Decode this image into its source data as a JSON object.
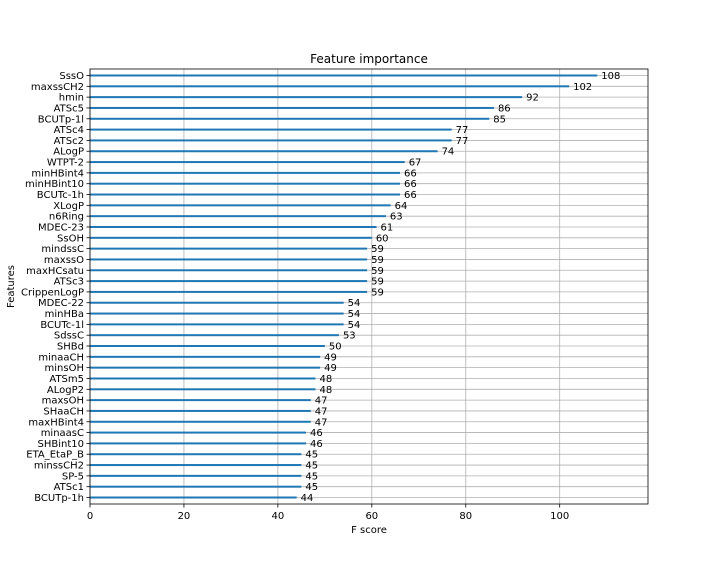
{
  "chart_data": {
    "type": "bar",
    "orientation": "horizontal",
    "title": "Feature importance",
    "xlabel": "F score",
    "ylabel": "Features",
    "xlim": [
      0,
      118.8
    ],
    "xticks": [
      0,
      20,
      40,
      60,
      80,
      100
    ],
    "grid": true,
    "bar_color": "#1f77b4",
    "categories": [
      "SssO",
      "maxssCH2",
      "hmin",
      "ATSc5",
      "BCUTp-1l",
      "ATSc4",
      "ATSc2",
      "ALogP",
      "WTPT-2",
      "minHBint4",
      "minHBint10",
      "BCUTc-1h",
      "XLogP",
      "n6Ring",
      "MDEC-23",
      "SsOH",
      "mindssC",
      "maxssO",
      "maxHCsatu",
      "ATSc3",
      "CrippenLogP",
      "MDEC-22",
      "minHBa",
      "BCUTc-1l",
      "SdssC",
      "SHBd",
      "minaaCH",
      "minsOH",
      "ATSm5",
      "ALogP2",
      "maxsOH",
      "SHaaCH",
      "maxHBint4",
      "minaasC",
      "SHBint10",
      "ETA_EtaP_B",
      "minssCH2",
      "SP-5",
      "ATSc1",
      "BCUTp-1h"
    ],
    "values": [
      108,
      102,
      92,
      86,
      85,
      77,
      77,
      74,
      67,
      66,
      66,
      66,
      64,
      63,
      61,
      60,
      59,
      59,
      59,
      59,
      59,
      54,
      54,
      54,
      53,
      50,
      49,
      49,
      48,
      48,
      47,
      47,
      47,
      46,
      46,
      45,
      45,
      45,
      45,
      44
    ]
  }
}
